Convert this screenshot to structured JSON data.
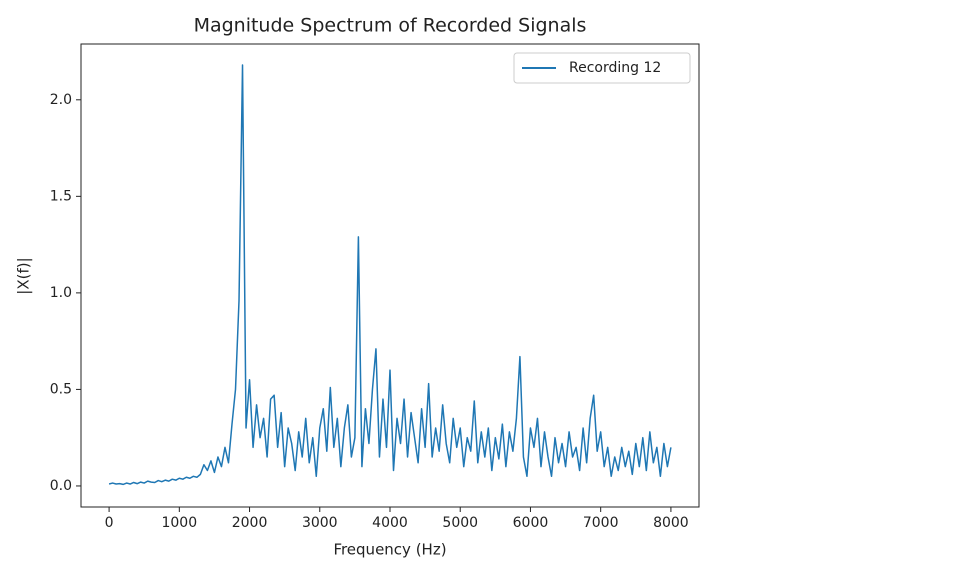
{
  "chart_data": {
    "type": "line",
    "title": "Magnitude Spectrum of Recorded Signals",
    "xlabel": "Frequency (Hz)",
    "ylabel": "|X(f)|",
    "legend": "upper right",
    "x": [
      0,
      50,
      100,
      150,
      200,
      250,
      300,
      350,
      400,
      450,
      500,
      550,
      600,
      650,
      700,
      750,
      800,
      850,
      900,
      950,
      1000,
      1050,
      1100,
      1150,
      1200,
      1250,
      1300,
      1350,
      1400,
      1450,
      1500,
      1550,
      1600,
      1650,
      1700,
      1750,
      1800,
      1850,
      1900,
      1950,
      2000,
      2050,
      2100,
      2150,
      2200,
      2250,
      2300,
      2350,
      2400,
      2450,
      2500,
      2550,
      2600,
      2650,
      2700,
      2750,
      2800,
      2850,
      2900,
      2950,
      3000,
      3050,
      3100,
      3150,
      3200,
      3250,
      3300,
      3350,
      3400,
      3450,
      3500,
      3550,
      3600,
      3650,
      3700,
      3750,
      3800,
      3850,
      3900,
      3950,
      4000,
      4050,
      4100,
      4150,
      4200,
      4250,
      4300,
      4350,
      4400,
      4450,
      4500,
      4550,
      4600,
      4650,
      4700,
      4750,
      4800,
      4850,
      4900,
      4950,
      5000,
      5050,
      5100,
      5150,
      5200,
      5250,
      5300,
      5350,
      5400,
      5450,
      5500,
      5550,
      5600,
      5650,
      5700,
      5750,
      5800,
      5850,
      5900,
      5950,
      6000,
      6050,
      6100,
      6150,
      6200,
      6250,
      6300,
      6350,
      6400,
      6450,
      6500,
      6550,
      6600,
      6650,
      6700,
      6750,
      6800,
      6850,
      6900,
      6950,
      7000,
      7050,
      7100,
      7150,
      7200,
      7250,
      7300,
      7350,
      7400,
      7450,
      7500,
      7550,
      7600,
      7650,
      7700,
      7750,
      7800,
      7850,
      7900,
      7950,
      8000
    ],
    "series": [
      {
        "name": "Recording 12",
        "color": "#1f77b4",
        "values": [
          0.01,
          0.015,
          0.01,
          0.012,
          0.008,
          0.015,
          0.01,
          0.018,
          0.012,
          0.02,
          0.015,
          0.025,
          0.02,
          0.018,
          0.028,
          0.022,
          0.03,
          0.025,
          0.035,
          0.03,
          0.04,
          0.035,
          0.045,
          0.04,
          0.05,
          0.045,
          0.06,
          0.11,
          0.08,
          0.13,
          0.07,
          0.15,
          0.1,
          0.2,
          0.12,
          0.32,
          0.5,
          0.96,
          2.18,
          0.3,
          0.55,
          0.2,
          0.42,
          0.25,
          0.35,
          0.15,
          0.45,
          0.47,
          0.2,
          0.38,
          0.1,
          0.3,
          0.22,
          0.08,
          0.28,
          0.15,
          0.35,
          0.12,
          0.25,
          0.05,
          0.3,
          0.4,
          0.18,
          0.51,
          0.2,
          0.35,
          0.1,
          0.3,
          0.42,
          0.15,
          0.25,
          1.29,
          0.1,
          0.4,
          0.22,
          0.5,
          0.71,
          0.15,
          0.45,
          0.2,
          0.6,
          0.08,
          0.35,
          0.22,
          0.45,
          0.15,
          0.38,
          0.25,
          0.12,
          0.4,
          0.2,
          0.53,
          0.15,
          0.3,
          0.18,
          0.42,
          0.22,
          0.12,
          0.35,
          0.2,
          0.3,
          0.1,
          0.25,
          0.18,
          0.44,
          0.12,
          0.28,
          0.15,
          0.3,
          0.08,
          0.25,
          0.14,
          0.32,
          0.1,
          0.28,
          0.18,
          0.35,
          0.67,
          0.15,
          0.05,
          0.3,
          0.2,
          0.35,
          0.1,
          0.28,
          0.15,
          0.05,
          0.25,
          0.12,
          0.22,
          0.1,
          0.28,
          0.15,
          0.2,
          0.08,
          0.3,
          0.12,
          0.35,
          0.47,
          0.18,
          0.28,
          0.1,
          0.2,
          0.05,
          0.15,
          0.08,
          0.2,
          0.1,
          0.18,
          0.06,
          0.22,
          0.1,
          0.25,
          0.08,
          0.28,
          0.12,
          0.2,
          0.05,
          0.22,
          0.1,
          0.2
        ]
      }
    ],
    "xlim": [
      -400,
      8400
    ],
    "xticks": [
      0,
      1000,
      2000,
      3000,
      4000,
      5000,
      6000,
      7000,
      8000
    ],
    "ylim": [
      -0.109,
      2.289
    ],
    "yticks": [
      {
        "value": 0,
        "label": "0.0"
      },
      0.5,
      {
        "value": 1,
        "label": "1.0"
      },
      1.5,
      {
        "value": 2,
        "label": "2.0"
      }
    ]
  }
}
